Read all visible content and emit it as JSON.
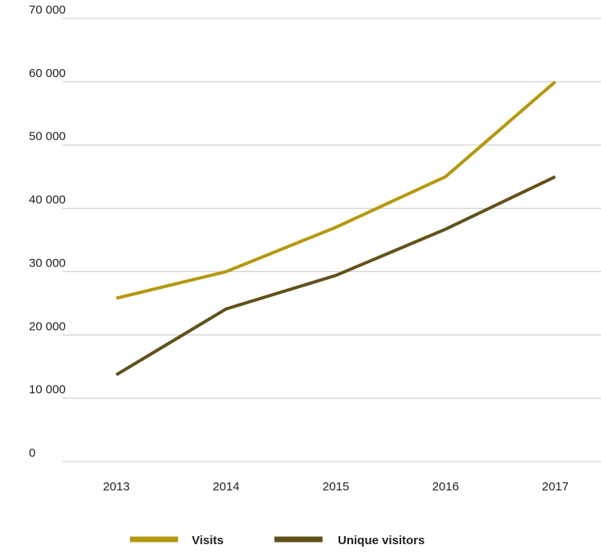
{
  "chart_data": {
    "type": "line",
    "title": "",
    "xlabel": "",
    "ylabel": "",
    "categories": [
      "2013",
      "2014",
      "2015",
      "2016",
      "2017"
    ],
    "ylim": [
      0,
      70000
    ],
    "yticks": [
      0,
      10000,
      20000,
      30000,
      40000,
      50000,
      60000,
      70000
    ],
    "ytick_labels": [
      "0",
      "10 000",
      "20 000",
      "30 000",
      "40 000",
      "50 000",
      "60 000",
      "70 000"
    ],
    "grid": true,
    "legend_position": "bottom",
    "series": [
      {
        "name": "Visits",
        "color": "#b5980f",
        "values": [
          25800,
          30000,
          37000,
          45000,
          60000
        ]
      },
      {
        "name": "Unique visitors",
        "color": "#60521a",
        "values": [
          13700,
          24100,
          29400,
          36700,
          45000
        ]
      }
    ]
  }
}
